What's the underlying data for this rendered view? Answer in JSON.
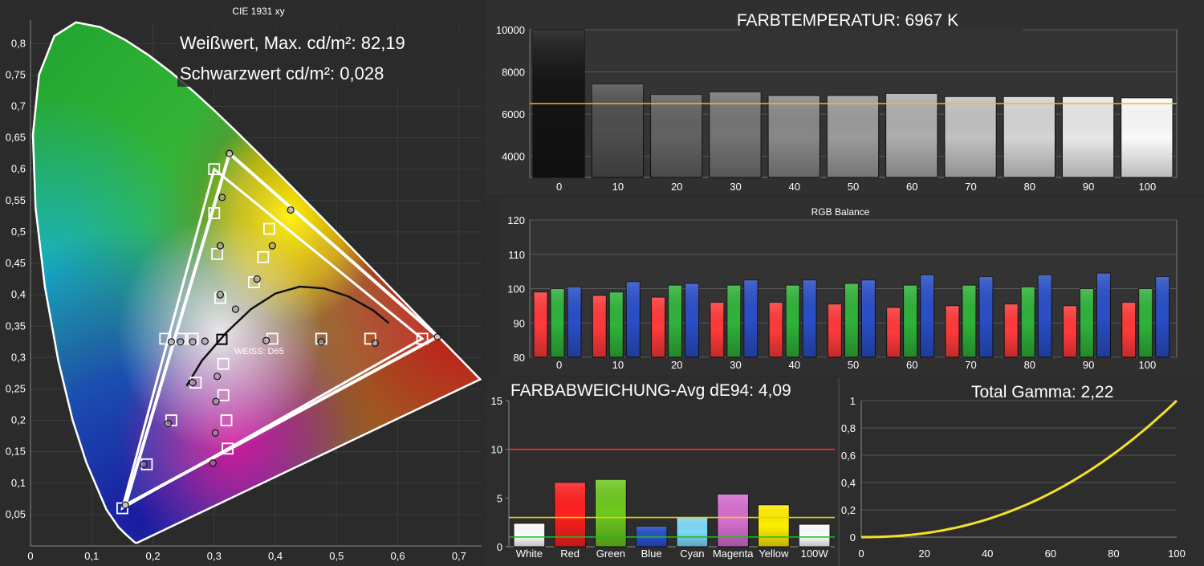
{
  "chart_data": [
    {
      "id": "cie",
      "type": "scatter",
      "title": "CIE 1931 xy",
      "annotations": [
        "Weißwert, Max. cd/m²: 82,19",
        "Schwarzwert cd/m²: 0,028",
        "WEISS: D65"
      ],
      "xlim": [
        0,
        0.75
      ],
      "ylim": [
        0,
        0.84
      ],
      "x_ticks": [
        "0",
        "0,1",
        "0,2",
        "0,3",
        "0,4",
        "0,5",
        "0,6",
        "0,7"
      ],
      "y_ticks": [
        "0,05",
        "0,1",
        "0,15",
        "0,2",
        "0,25",
        "0,3",
        "0,35",
        "0,4",
        "0,45",
        "0,5",
        "0,55",
        "0,6",
        "0,65",
        "0,7",
        "0,75",
        "0,8"
      ],
      "reference_gamut": [
        [
          0.64,
          0.33
        ],
        [
          0.3,
          0.6
        ],
        [
          0.15,
          0.06
        ]
      ],
      "measured_gamut": [
        [
          0.665,
          0.333
        ],
        [
          0.325,
          0.625
        ],
        [
          0.155,
          0.065
        ]
      ],
      "white_point": [
        0.3127,
        0.329
      ],
      "targets": [
        [
          0.3,
          0.6
        ],
        [
          0.3,
          0.53
        ],
        [
          0.305,
          0.465
        ],
        [
          0.31,
          0.395
        ],
        [
          0.39,
          0.505
        ],
        [
          0.38,
          0.46
        ],
        [
          0.365,
          0.42
        ],
        [
          0.22,
          0.33
        ],
        [
          0.245,
          0.33
        ],
        [
          0.265,
          0.33
        ],
        [
          0.395,
          0.33
        ],
        [
          0.475,
          0.33
        ],
        [
          0.555,
          0.33
        ],
        [
          0.64,
          0.33
        ],
        [
          0.27,
          0.26
        ],
        [
          0.315,
          0.29
        ],
        [
          0.315,
          0.24
        ],
        [
          0.32,
          0.2
        ],
        [
          0.322,
          0.155
        ],
        [
          0.23,
          0.2
        ],
        [
          0.19,
          0.13
        ],
        [
          0.15,
          0.06
        ]
      ],
      "measurements": [
        [
          0.325,
          0.625
        ],
        [
          0.313,
          0.555
        ],
        [
          0.31,
          0.478
        ],
        [
          0.31,
          0.4
        ],
        [
          0.425,
          0.535
        ],
        [
          0.395,
          0.478
        ],
        [
          0.37,
          0.425
        ],
        [
          0.335,
          0.377
        ],
        [
          0.23,
          0.325
        ],
        [
          0.245,
          0.325
        ],
        [
          0.265,
          0.325
        ],
        [
          0.285,
          0.326
        ],
        [
          0.385,
          0.327
        ],
        [
          0.475,
          0.325
        ],
        [
          0.563,
          0.323
        ],
        [
          0.665,
          0.333
        ],
        [
          0.265,
          0.26
        ],
        [
          0.305,
          0.27
        ],
        [
          0.303,
          0.23
        ],
        [
          0.302,
          0.18
        ],
        [
          0.298,
          0.132
        ],
        [
          0.225,
          0.195
        ],
        [
          0.185,
          0.13
        ],
        [
          0.155,
          0.065
        ]
      ],
      "blackbody_curve": [
        [
          0.255,
          0.255
        ],
        [
          0.28,
          0.295
        ],
        [
          0.32,
          0.34
        ],
        [
          0.36,
          0.377
        ],
        [
          0.4,
          0.402
        ],
        [
          0.44,
          0.413
        ],
        [
          0.48,
          0.41
        ],
        [
          0.52,
          0.397
        ],
        [
          0.56,
          0.375
        ],
        [
          0.585,
          0.355
        ]
      ]
    },
    {
      "id": "colortemp",
      "type": "bar",
      "title": "FARBTEMPERATUR: 6967 K",
      "categories": [
        "0",
        "10",
        "20",
        "30",
        "40",
        "50",
        "60",
        "70",
        "80",
        "90",
        "100"
      ],
      "values": [
        10000,
        7430,
        6930,
        7050,
        6880,
        6880,
        6980,
        6830,
        6830,
        6830,
        6770
      ],
      "target": 6500,
      "ylim": [
        3000,
        10000
      ],
      "y_ticks": [
        "4000",
        "6000",
        "8000",
        "10000"
      ]
    },
    {
      "id": "rgb",
      "type": "bar",
      "title": "RGB Balance",
      "categories": [
        "0",
        "10",
        "20",
        "30",
        "40",
        "50",
        "60",
        "70",
        "80",
        "90",
        "100"
      ],
      "series": [
        {
          "color": "#ff3a3a",
          "values": [
            99,
            98,
            97.5,
            96,
            96,
            95.5,
            94.5,
            95,
            95.5,
            95,
            96
          ]
        },
        {
          "color": "#2fb33a",
          "values": [
            100,
            99,
            101,
            101,
            101,
            101.5,
            101,
            101,
            100.5,
            100,
            100
          ]
        },
        {
          "color": "#2a4fc8",
          "values": [
            100.5,
            102,
            101.5,
            102.5,
            102.5,
            102.5,
            104,
            103.5,
            104,
            104.5,
            103.5
          ]
        }
      ],
      "ylim": [
        80,
        120
      ],
      "y_ticks": [
        "80",
        "90",
        "100",
        "110",
        "120"
      ]
    },
    {
      "id": "deltae",
      "type": "bar",
      "title": "FARBABWEICHUNG-Avg dE94: 4,09",
      "categories": [
        "White",
        "Red",
        "Green",
        "Blue",
        "Cyan",
        "Magenta",
        "Yellow",
        "100W"
      ],
      "values": [
        2.4,
        6.6,
        6.9,
        2.1,
        3.0,
        5.4,
        4.3,
        2.3
      ],
      "colors": [
        "#ffffff",
        "#ff2020",
        "#6ec91e",
        "#2a4fc8",
        "#7fd8f8",
        "#d66fd0",
        "#ffee00",
        "#ffffff"
      ],
      "thresholds": [
        {
          "value": 10,
          "color": "#ff3030"
        },
        {
          "value": 3,
          "color": "#e2d20a"
        },
        {
          "value": 1,
          "color": "#22bb22"
        }
      ],
      "ylim": [
        0,
        15
      ],
      "y_ticks": [
        "0",
        "5",
        "10",
        "15"
      ]
    },
    {
      "id": "gamma",
      "type": "line",
      "title": "Total Gamma: 2,22",
      "gamma": 2.22,
      "xlim": [
        0,
        100
      ],
      "ylim": [
        0,
        1
      ],
      "x_ticks": [
        "0",
        "20",
        "40",
        "60",
        "80",
        "100"
      ],
      "y_ticks": [
        "0",
        "0,2",
        "0,4",
        "0,6",
        "0,8",
        "1"
      ]
    }
  ]
}
